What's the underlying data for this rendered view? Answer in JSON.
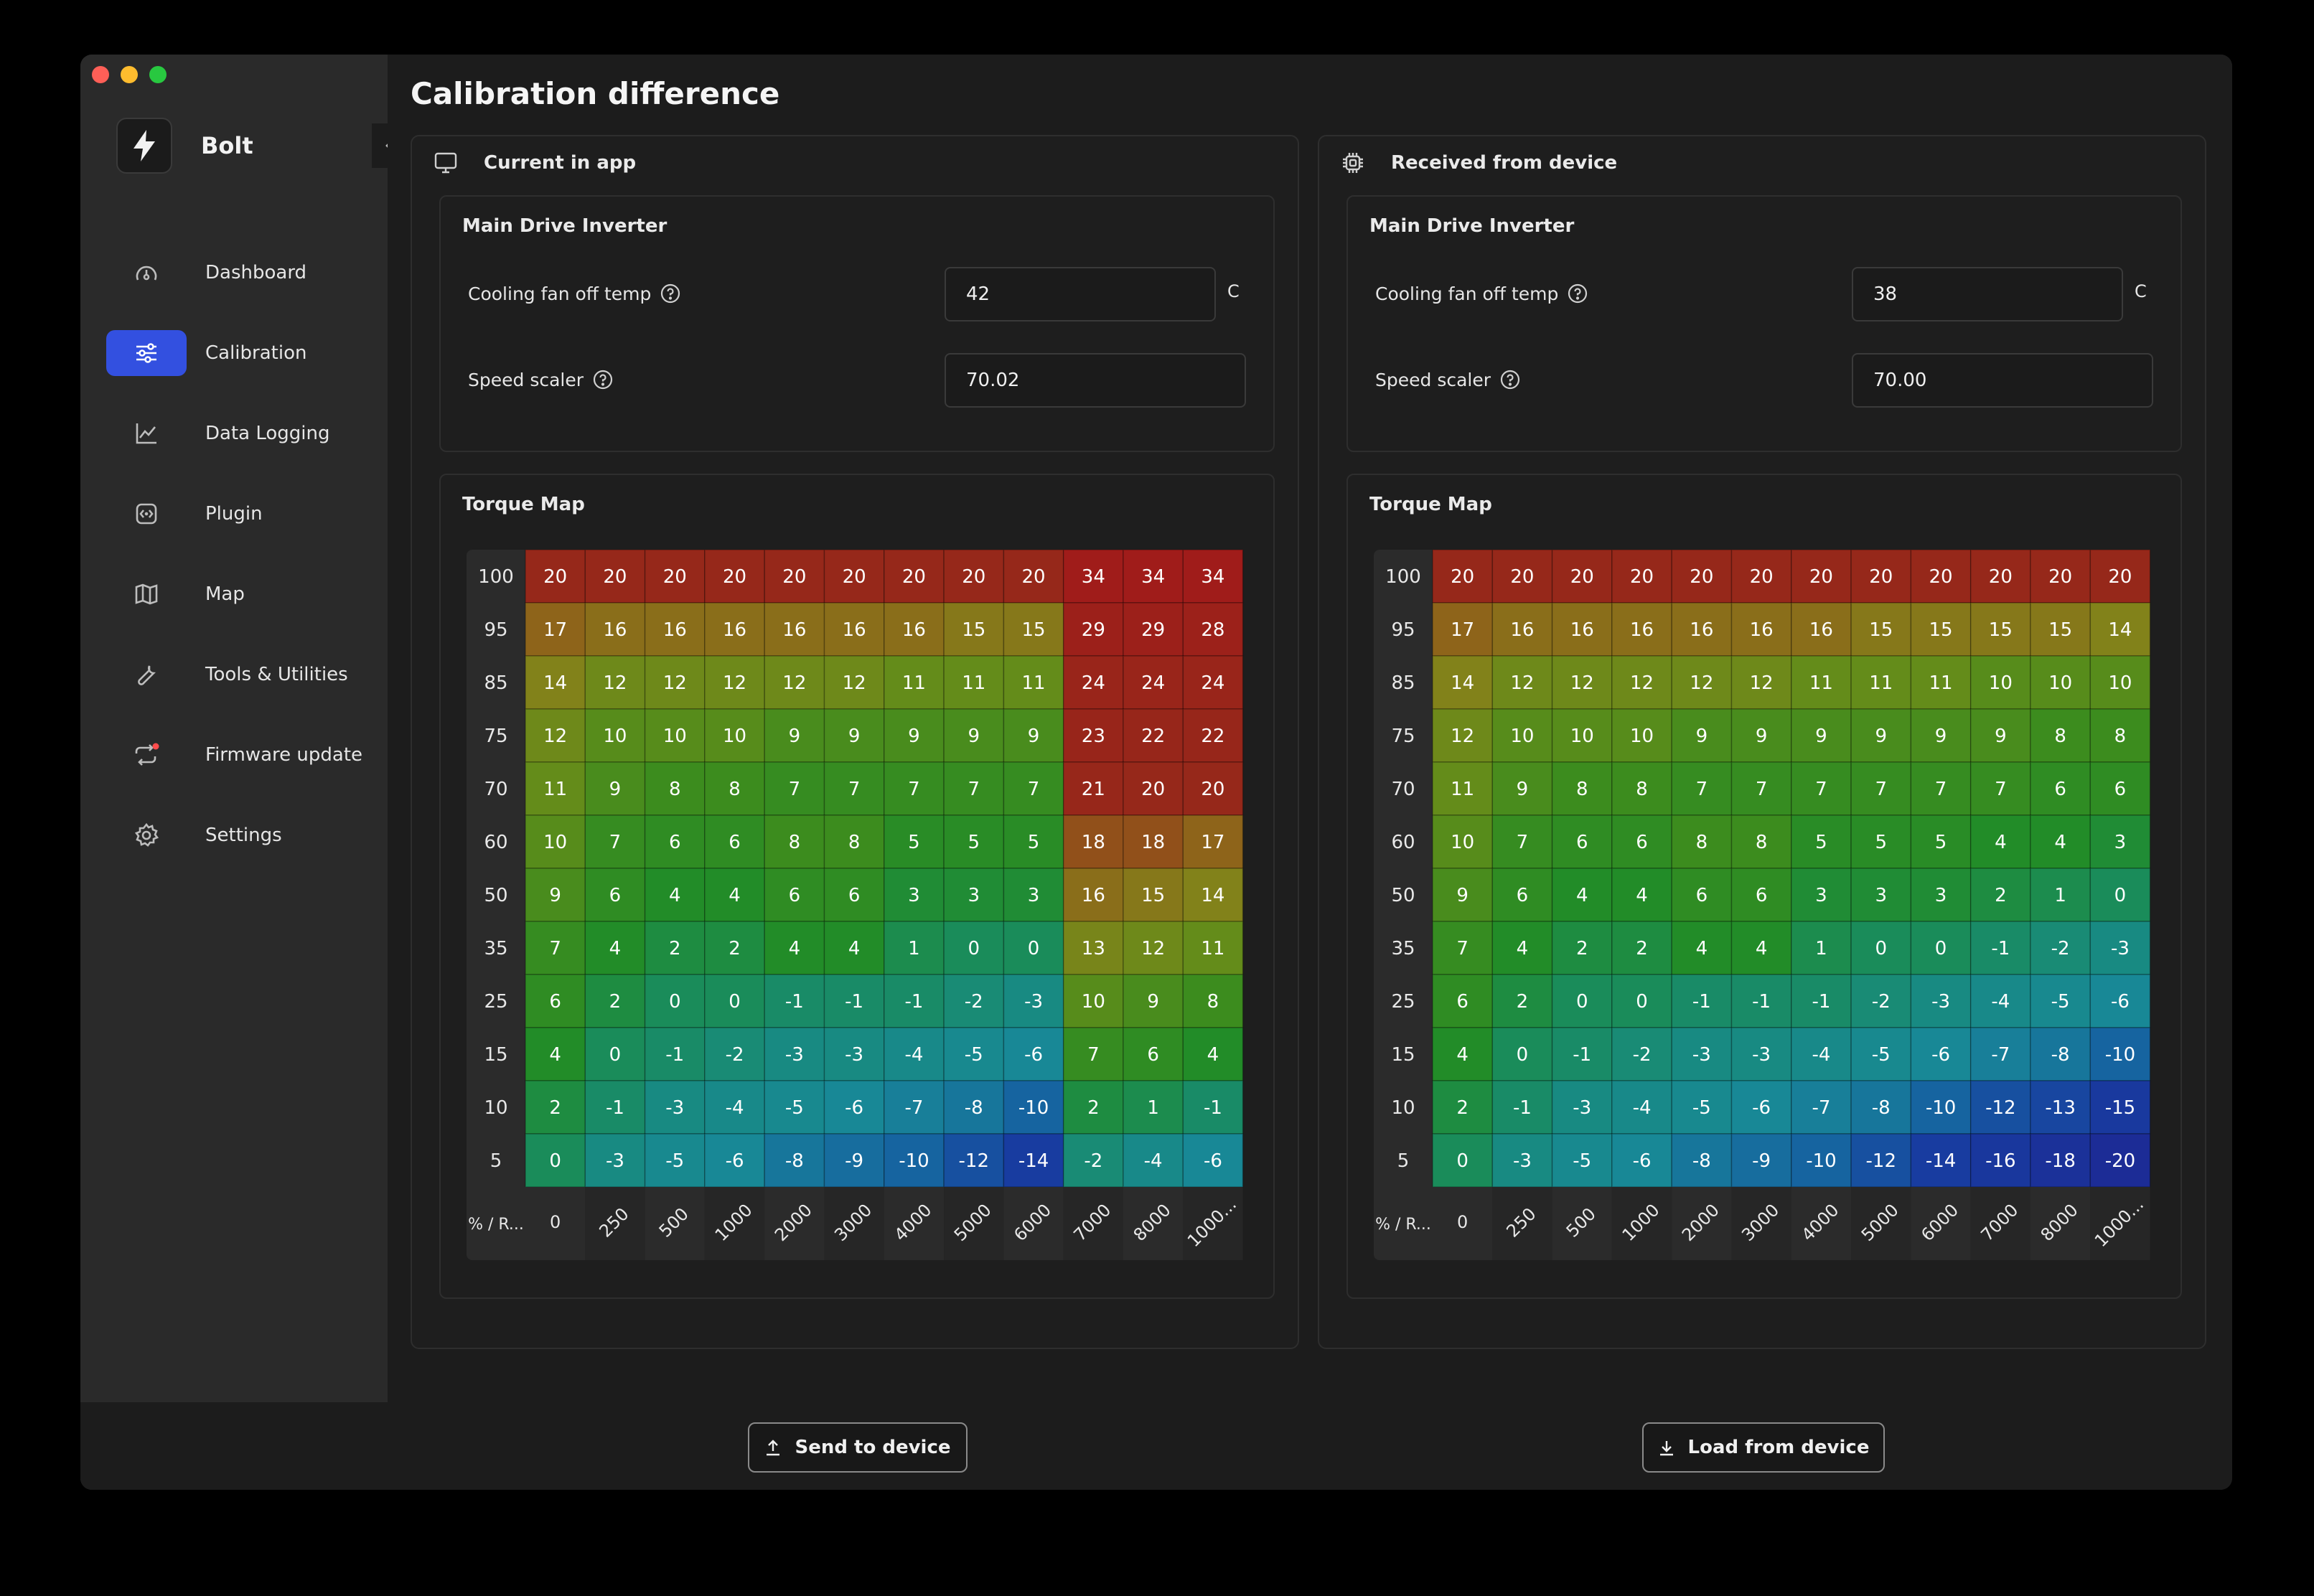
{
  "app": {
    "name": "Bolt"
  },
  "nav": [
    {
      "label": "Dashboard",
      "icon": "gauge-icon",
      "active": false
    },
    {
      "label": "Calibration",
      "icon": "sliders-icon",
      "active": true
    },
    {
      "label": "Data Logging",
      "icon": "chart-line-icon",
      "active": false
    },
    {
      "label": "Plugin",
      "icon": "plugin-icon",
      "active": false
    },
    {
      "label": "Map",
      "icon": "map-icon",
      "active": false
    },
    {
      "label": "Tools & Utilities",
      "icon": "wrench-icon",
      "active": false
    },
    {
      "label": "Firmware update",
      "icon": "refresh-icon",
      "active": false
    },
    {
      "label": "Settings",
      "icon": "gear-icon",
      "active": false
    }
  ],
  "page": {
    "title": "Calibration difference"
  },
  "panels": {
    "left": {
      "title": "Current in app",
      "icon": "monitor-icon",
      "section": "Main Drive Inverter",
      "cooling_label": "Cooling fan off temp",
      "cooling_value": "42",
      "cooling_unit": "C",
      "speed_label": "Speed scaler",
      "speed_value": "70.02",
      "torque_title": "Torque Map"
    },
    "right": {
      "title": "Received from device",
      "icon": "chip-icon",
      "section": "Main Drive Inverter",
      "cooling_label": "Cooling fan off temp",
      "cooling_value": "38",
      "cooling_unit": "C",
      "speed_label": "Speed scaler",
      "speed_value": "70.00",
      "torque_title": "Torque Map"
    }
  },
  "torque_map": {
    "corner_label": "% / R...",
    "rows": [
      "100",
      "95",
      "85",
      "75",
      "70",
      "60",
      "50",
      "35",
      "25",
      "15",
      "10",
      "5"
    ],
    "cols": [
      "0",
      "250",
      "500",
      "1000",
      "2000",
      "3000",
      "4000",
      "5000",
      "6000",
      "7000",
      "8000",
      "1000..."
    ],
    "left_values": [
      [
        20,
        20,
        20,
        20,
        20,
        20,
        20,
        20,
        20,
        34,
        34,
        34
      ],
      [
        17,
        16,
        16,
        16,
        16,
        16,
        16,
        15,
        15,
        29,
        29,
        28
      ],
      [
        14,
        12,
        12,
        12,
        12,
        12,
        11,
        11,
        11,
        24,
        24,
        24
      ],
      [
        12,
        10,
        10,
        10,
        9,
        9,
        9,
        9,
        9,
        23,
        22,
        22
      ],
      [
        11,
        9,
        8,
        8,
        7,
        7,
        7,
        7,
        7,
        21,
        20,
        20
      ],
      [
        10,
        7,
        6,
        6,
        8,
        8,
        5,
        5,
        5,
        18,
        18,
        17
      ],
      [
        9,
        6,
        4,
        4,
        6,
        6,
        3,
        3,
        3,
        16,
        15,
        14
      ],
      [
        7,
        4,
        2,
        2,
        4,
        4,
        1,
        0,
        0,
        13,
        12,
        11
      ],
      [
        6,
        2,
        0,
        0,
        -1,
        -1,
        -1,
        -2,
        -3,
        10,
        9,
        8
      ],
      [
        4,
        0,
        -1,
        -2,
        -3,
        -3,
        -4,
        -5,
        -6,
        7,
        6,
        4
      ],
      [
        2,
        -1,
        -3,
        -4,
        -5,
        -6,
        -7,
        -8,
        -10,
        2,
        1,
        -1
      ],
      [
        0,
        -3,
        -5,
        -6,
        -8,
        -9,
        -10,
        -12,
        -14,
        -2,
        -4,
        -6
      ]
    ],
    "right_values": [
      [
        20,
        20,
        20,
        20,
        20,
        20,
        20,
        20,
        20,
        20,
        20,
        20
      ],
      [
        17,
        16,
        16,
        16,
        16,
        16,
        16,
        15,
        15,
        15,
        15,
        14
      ],
      [
        14,
        12,
        12,
        12,
        12,
        12,
        11,
        11,
        11,
        10,
        10,
        10
      ],
      [
        12,
        10,
        10,
        10,
        9,
        9,
        9,
        9,
        9,
        9,
        8,
        8
      ],
      [
        11,
        9,
        8,
        8,
        7,
        7,
        7,
        7,
        7,
        7,
        6,
        6
      ],
      [
        10,
        7,
        6,
        6,
        8,
        8,
        5,
        5,
        5,
        4,
        4,
        3
      ],
      [
        9,
        6,
        4,
        4,
        6,
        6,
        3,
        3,
        3,
        2,
        1,
        0
      ],
      [
        7,
        4,
        2,
        2,
        4,
        4,
        1,
        0,
        0,
        -1,
        -2,
        -3
      ],
      [
        6,
        2,
        0,
        0,
        -1,
        -1,
        -1,
        -2,
        -3,
        -4,
        -5,
        -6
      ],
      [
        4,
        0,
        -1,
        -2,
        -3,
        -3,
        -4,
        -5,
        -6,
        -7,
        -8,
        -10
      ],
      [
        2,
        -1,
        -3,
        -4,
        -5,
        -6,
        -7,
        -8,
        -10,
        -12,
        -13,
        -15
      ],
      [
        0,
        -3,
        -5,
        -6,
        -8,
        -9,
        -10,
        -12,
        -14,
        -16,
        -18,
        -20
      ]
    ]
  },
  "footer": {
    "send_label": "Send to device",
    "load_label": "Load from device"
  }
}
